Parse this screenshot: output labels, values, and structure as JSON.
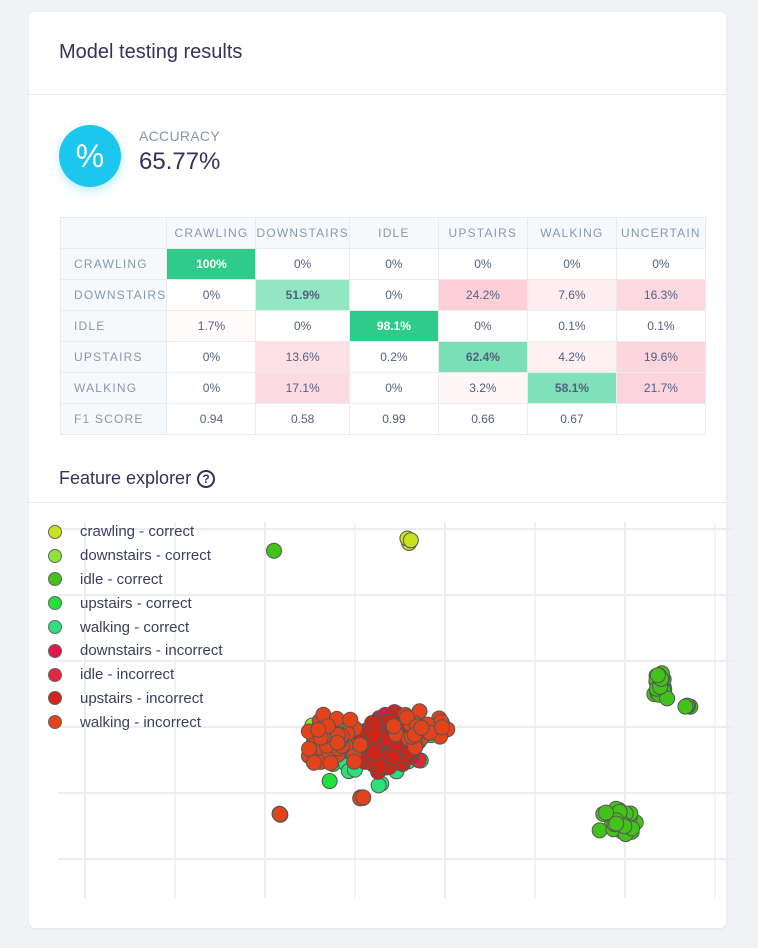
{
  "header": {
    "title": "Model testing results"
  },
  "accuracy": {
    "icon": "percent-icon",
    "icon_glyph": "%",
    "label": "ACCURACY",
    "value": "65.77%",
    "icon_color": "#1bc6ef"
  },
  "matrix": {
    "columns": [
      "CRAWLING",
      "DOWNSTAIRS",
      "IDLE",
      "UPSTAIRS",
      "WALKING",
      "UNCERTAIN"
    ],
    "rows": [
      {
        "label": "CRAWLING",
        "cells": [
          "100%",
          "0%",
          "0%",
          "0%",
          "0%",
          "0%"
        ]
      },
      {
        "label": "DOWNSTAIRS",
        "cells": [
          "0%",
          "51.9%",
          "0%",
          "24.2%",
          "7.6%",
          "16.3%"
        ]
      },
      {
        "label": "IDLE",
        "cells": [
          "1.7%",
          "0%",
          "98.1%",
          "0%",
          "0.1%",
          "0.1%"
        ]
      },
      {
        "label": "UPSTAIRS",
        "cells": [
          "0%",
          "13.6%",
          "0.2%",
          "62.4%",
          "4.2%",
          "19.6%"
        ]
      },
      {
        "label": "WALKING",
        "cells": [
          "0%",
          "17.1%",
          "0%",
          "3.2%",
          "58.1%",
          "21.7%"
        ]
      }
    ],
    "f1": {
      "label": "F1 SCORE",
      "cells": [
        "0.94",
        "0.58",
        "0.99",
        "0.66",
        "0.67",
        ""
      ]
    }
  },
  "feature_explorer": {
    "title": "Feature explorer",
    "help_icon": "question-circle-icon",
    "help_glyph": "?"
  },
  "chart_data": {
    "type": "scatter",
    "title": "",
    "xlabel": "",
    "ylabel": "",
    "grid": true,
    "legend": "top-left",
    "series": [
      {
        "name": "crawling - correct",
        "color": "#c8e21b",
        "clusters": [
          {
            "center": [
              3.6,
              4.85
            ],
            "spread": [
              0.05,
              0.2
            ],
            "n": 3
          }
        ]
      },
      {
        "name": "downstairs - correct",
        "color": "#8fe33a",
        "clusters": [
          {
            "center": [
              2.6,
              2.05
            ],
            "spread": [
              0.2,
              0.1
            ],
            "n": 6
          }
        ]
      },
      {
        "name": "idle - correct",
        "color": "#44c21c",
        "clusters": [
          {
            "center": [
              2.1,
              4.67
            ],
            "spread": [
              0,
              0
            ],
            "n": 1
          },
          {
            "center": [
              6.4,
              2.6
            ],
            "spread": [
              0.1,
              0.35
            ],
            "n": 25
          },
          {
            "center": [
              6.68,
              2.32
            ],
            "spread": [
              0.05,
              0.03
            ],
            "n": 4
          },
          {
            "center": [
              5.95,
              0.6
            ],
            "spread": [
              0.3,
              0.42
            ],
            "n": 30
          }
        ]
      },
      {
        "name": "upstairs - correct",
        "color": "#1fe33a",
        "clusters": [
          {
            "center": [
              3.3,
              1.7
            ],
            "spread": [
              0.7,
              0.6
            ],
            "n": 40
          }
        ]
      },
      {
        "name": "walking - correct",
        "color": "#2ee07a",
        "clusters": [
          {
            "center": [
              3.3,
              1.65
            ],
            "spread": [
              0.75,
              0.65
            ],
            "n": 40
          }
        ]
      },
      {
        "name": "downstairs - incorrect",
        "color": "#e0194a",
        "clusters": [
          {
            "center": [
              3.3,
              1.8
            ],
            "spread": [
              0.45,
              0.5
            ],
            "n": 60
          }
        ]
      },
      {
        "name": "idle - incorrect",
        "color": "#e0283c",
        "clusters": [
          {
            "center": [
              3.4,
              1.7
            ],
            "spread": [
              0.4,
              0.45
            ],
            "n": 30
          }
        ]
      },
      {
        "name": "upstairs - incorrect",
        "color": "#cf2418",
        "clusters": [
          {
            "center": [
              3.35,
              1.75
            ],
            "spread": [
              0.45,
              0.55
            ],
            "n": 140
          }
        ]
      },
      {
        "name": "walking - incorrect",
        "color": "#e2431b",
        "clusters": [
          {
            "center": [
              2.75,
              1.8
            ],
            "spread": [
              0.4,
              0.5
            ],
            "n": 60
          },
          {
            "center": [
              3.7,
              1.9
            ],
            "spread": [
              0.5,
              0.4
            ],
            "n": 30
          },
          {
            "center": [
              3.08,
              0.94
            ],
            "spread": [
              0.05,
              0.05
            ],
            "n": 4
          },
          {
            "center": [
              2.17,
              0.68
            ],
            "spread": [
              0.03,
              0.04
            ],
            "n": 3
          }
        ]
      }
    ]
  }
}
